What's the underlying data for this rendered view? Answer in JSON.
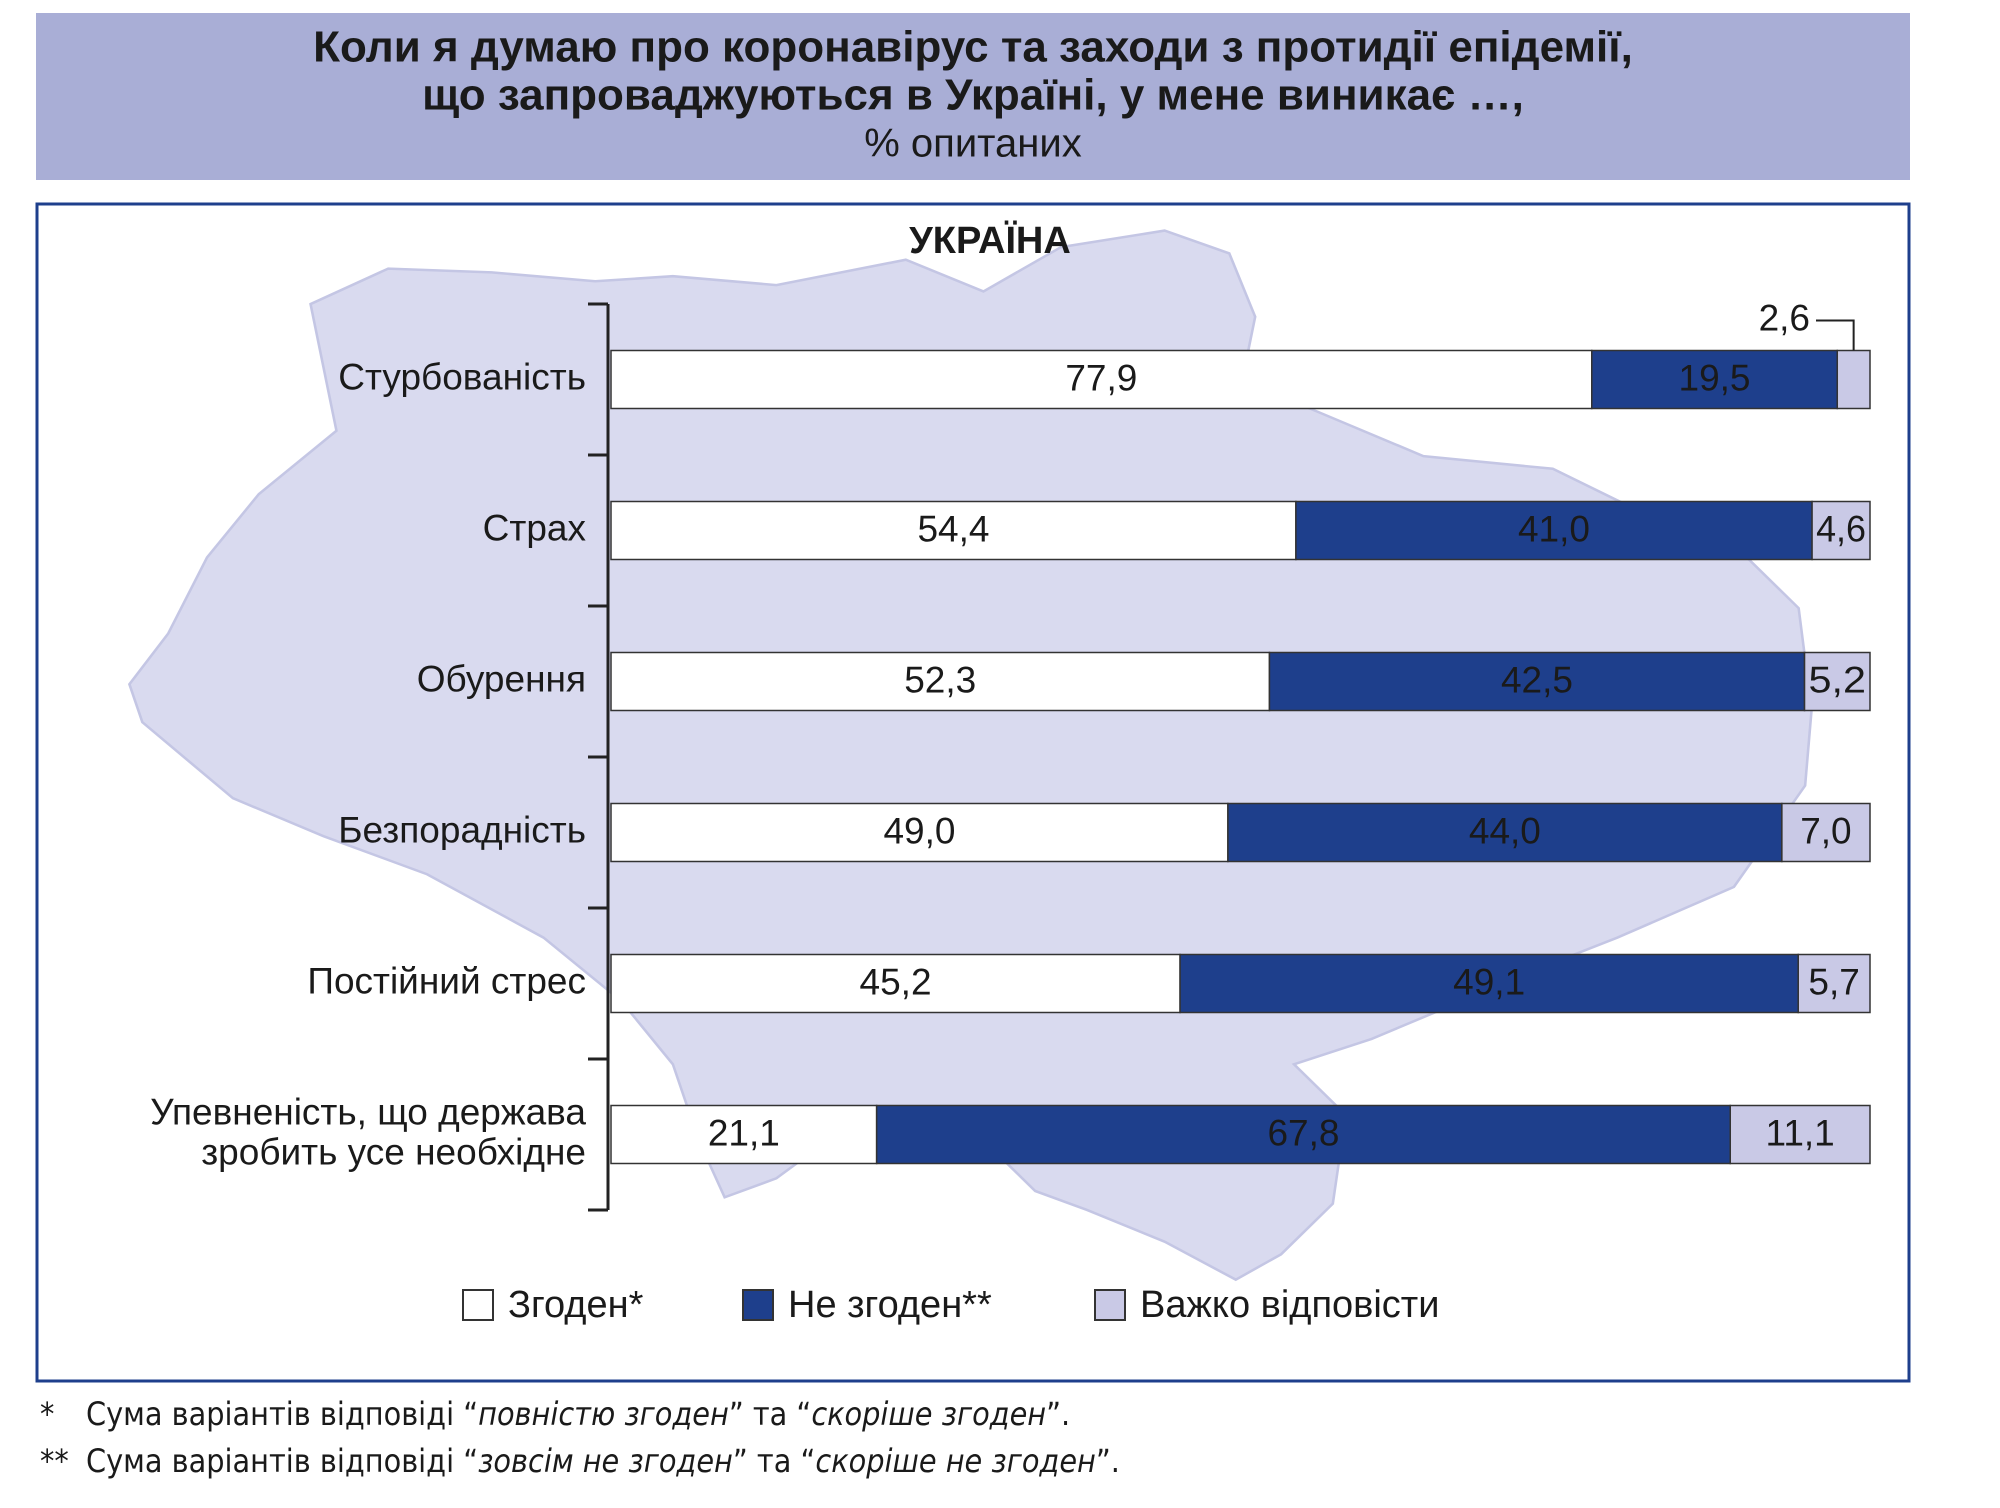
{
  "chart_data": {
    "type": "stacked-barh",
    "title": [
      "Коли я думаю про коронавірус та заходи з протидії епідемії,",
      "що запроваджуються в Україні, у мене виникає …,"
    ],
    "subtitle": "% опитаних",
    "panel_title": "УКРАЇНА",
    "categories": [
      [
        "Стурбованість"
      ],
      [
        "Страх"
      ],
      [
        "Обурення"
      ],
      [
        "Безпорадність"
      ],
      [
        "Постійний стрес"
      ],
      [
        "Упевненість, що держава",
        "зробить усе необхідне"
      ]
    ],
    "series": [
      {
        "name": "Згоден*",
        "color": "#ffffff",
        "values": [
          77.9,
          54.4,
          52.3,
          49.0,
          45.2,
          21.1
        ],
        "value_labels": [
          "77,9",
          "54,4",
          "52,3",
          "49,0",
          "45,2",
          "21,1"
        ]
      },
      {
        "name": "Не згоден**",
        "color": "#1e3f8c",
        "values": [
          19.5,
          41.0,
          42.5,
          44.0,
          49.1,
          67.8
        ],
        "value_labels": [
          "19,5",
          "41,0",
          "42,5",
          "44,0",
          "49,1",
          "67,8"
        ]
      },
      {
        "name": "Важко відповісти",
        "color": "#c9c9e6",
        "values": [
          2.6,
          4.6,
          5.2,
          7.0,
          5.7,
          11.1
        ],
        "value_labels": [
          "2,6",
          "4,6",
          "5,2",
          "7,0",
          "5,7",
          "11,1"
        ]
      }
    ],
    "xlim": [
      0,
      100
    ],
    "legend": "bottom",
    "footnotes": [
      [
        "*",
        "Сума варіантів відповіді “",
        "повністю згоден",
        "” та “",
        "скоріше згоден",
        "”."
      ],
      [
        "**",
        "Сума варіантів відповіді “",
        "зовсім не згоден",
        "” та “",
        "скоріше не згоден",
        "”."
      ]
    ]
  }
}
